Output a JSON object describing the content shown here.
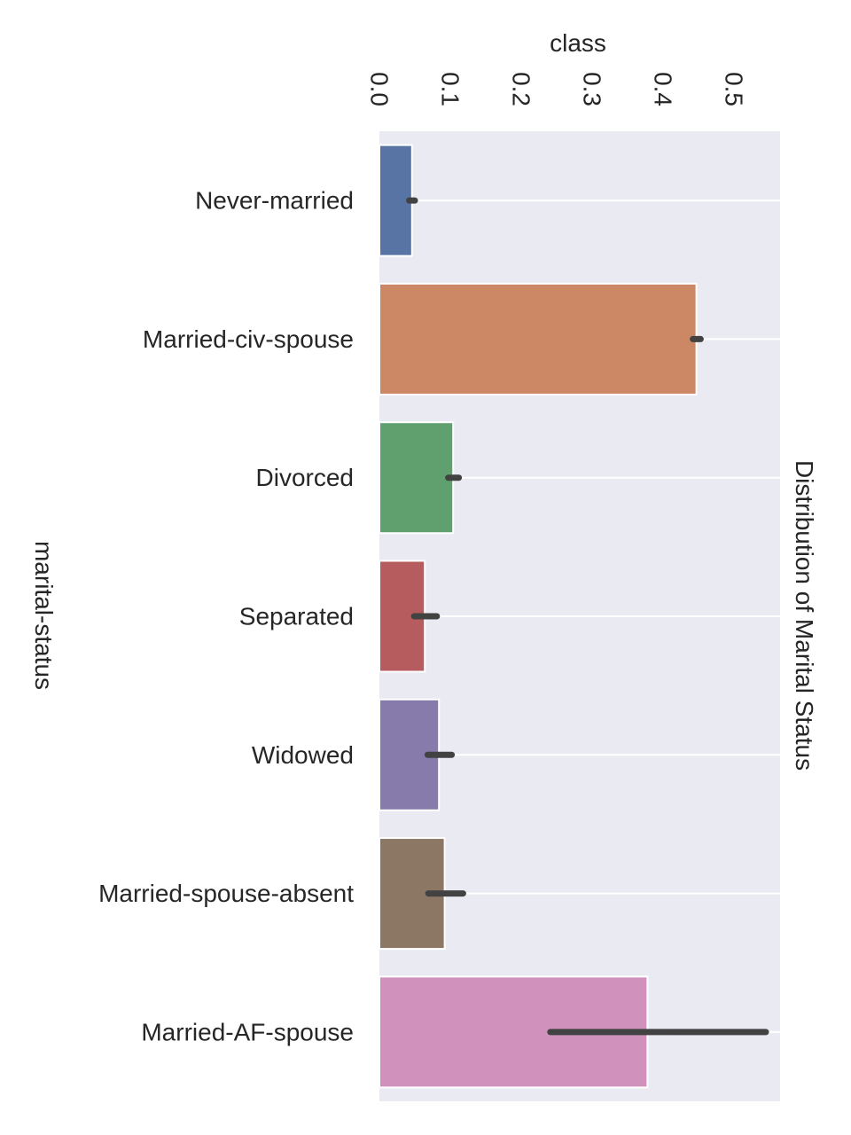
{
  "chart_data": {
    "type": "bar",
    "orientation": "horizontal",
    "title": "Distribution of Marital Status",
    "xlabel": "class",
    "ylabel": "marital-status",
    "categories": [
      "Never-married",
      "Married-civ-spouse",
      "Divorced",
      "Separated",
      "Widowed",
      "Married-spouse-absent",
      "Married-AF-spouse"
    ],
    "values": [
      0.046,
      0.447,
      0.104,
      0.064,
      0.084,
      0.092,
      0.378
    ],
    "error_bars": [
      [
        0.042,
        0.05
      ],
      [
        0.442,
        0.453
      ],
      [
        0.097,
        0.112
      ],
      [
        0.049,
        0.081
      ],
      [
        0.068,
        0.102
      ],
      [
        0.069,
        0.118
      ],
      [
        0.241,
        0.545
      ]
    ],
    "bar_colors": [
      "#5874a4",
      "#cc8864",
      "#60a06e",
      "#b65b5e",
      "#877bac",
      "#8c7664",
      "#d092bd"
    ],
    "xticks": [
      "0.0",
      "0.1",
      "0.2",
      "0.3",
      "0.4",
      "0.5"
    ],
    "xlim": [
      0.0,
      0.565
    ],
    "grid": true,
    "colors": {
      "plot_background": "#eaeaf2",
      "grid": "#ffffff",
      "error_bar": "#424242",
      "text": "#262626"
    }
  }
}
